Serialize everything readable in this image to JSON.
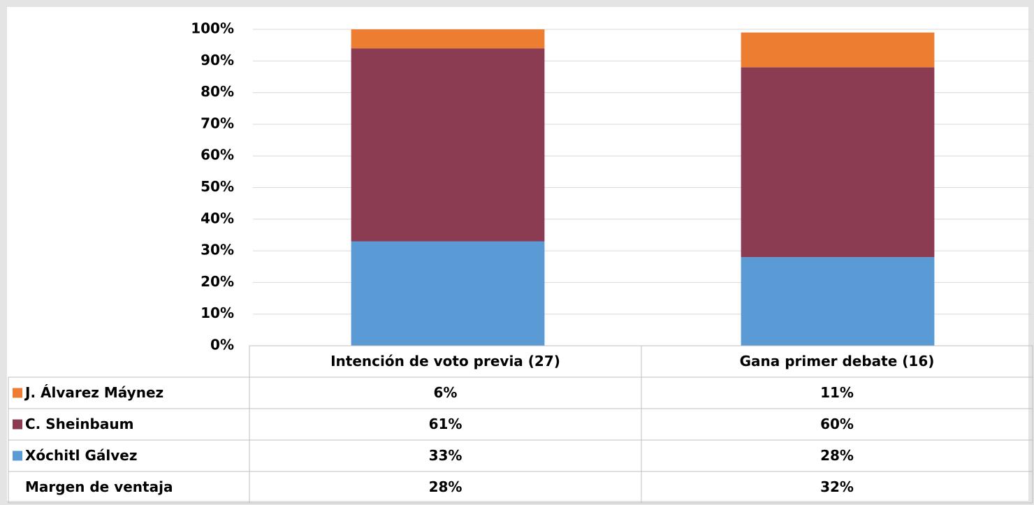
{
  "chart_data": {
    "type": "stacked_bar",
    "categories": [
      "Intención de voto previa (27)",
      "Gana primer debate (16)"
    ],
    "series": [
      {
        "name": "Xóchitl Gálvez",
        "color": "#5b9bd5",
        "values": [
          33,
          28
        ],
        "value_labels": [
          "33%",
          "28%"
        ]
      },
      {
        "name": "C. Sheinbaum",
        "color": "#8b3c53",
        "values": [
          61,
          60
        ],
        "value_labels": [
          "61%",
          "60%"
        ]
      },
      {
        "name": "J. Álvarez Máynez",
        "color": "#ed7d31",
        "values": [
          6,
          11
        ],
        "value_labels": [
          "6%",
          "11%"
        ]
      }
    ],
    "margin": {
      "name": "Margen de ventaja",
      "values": [
        28,
        32
      ],
      "value_labels": [
        "28%",
        "32%"
      ]
    },
    "ylim": [
      0,
      100
    ],
    "yticks": [
      {
        "value": 0,
        "label": "0%"
      },
      {
        "value": 10,
        "label": "10%"
      },
      {
        "value": 20,
        "label": "20%"
      },
      {
        "value": 30,
        "label": "30%"
      },
      {
        "value": 40,
        "label": "40%"
      },
      {
        "value": 50,
        "label": "50%"
      },
      {
        "value": 60,
        "label": "60%"
      },
      {
        "value": 70,
        "label": "70%"
      },
      {
        "value": 80,
        "label": "80%"
      },
      {
        "value": 90,
        "label": "90%"
      },
      {
        "value": 100,
        "label": "100%"
      }
    ],
    "grid": true
  }
}
